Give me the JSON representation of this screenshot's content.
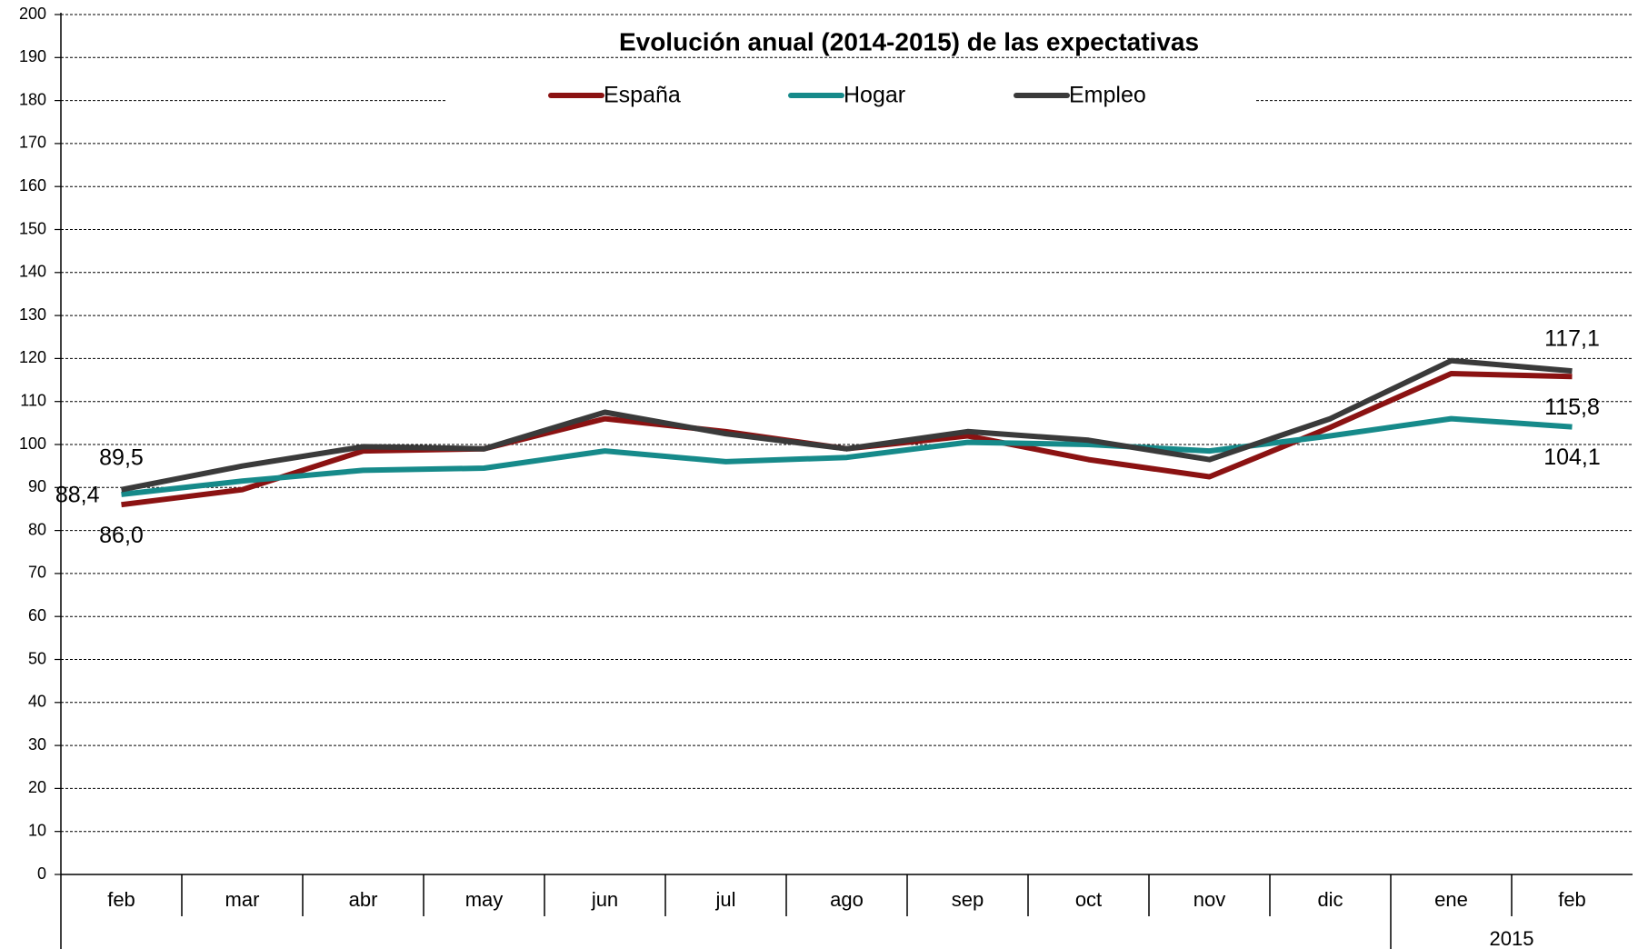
{
  "chart_data": {
    "type": "line",
    "title": "Evolución anual (2014-2015) de las expectativas",
    "categories": [
      "feb",
      "mar",
      "abr",
      "may",
      "jun",
      "jul",
      "ago",
      "sep",
      "oct",
      "nov",
      "dic",
      "ene",
      "feb"
    ],
    "year_label": "2015",
    "series": [
      {
        "name": "España",
        "color": "#8b1212",
        "values": [
          86.0,
          89.5,
          98.5,
          99,
          106,
          103,
          99,
          102,
          96.5,
          92.5,
          104,
          116.5,
          115.8
        ],
        "value_labels": [
          "86,0",
          null,
          null,
          null,
          null,
          null,
          null,
          null,
          null,
          null,
          null,
          null,
          "115,8"
        ]
      },
      {
        "name": "Hogar",
        "color": "#168a8a",
        "values": [
          88.4,
          91.5,
          94,
          94.5,
          98.5,
          96,
          97,
          100.5,
          100,
          98.5,
          102,
          106,
          104.1
        ],
        "value_labels": [
          "88,4",
          null,
          null,
          null,
          null,
          null,
          null,
          null,
          null,
          null,
          null,
          null,
          "104,1"
        ]
      },
      {
        "name": "Empleo",
        "color": "#3a3a3a",
        "values": [
          89.5,
          95,
          99.5,
          99,
          107.5,
          102.5,
          99,
          103,
          101,
          96.5,
          106,
          119.5,
          117.1
        ],
        "value_labels": [
          "89,5",
          null,
          null,
          null,
          null,
          null,
          null,
          null,
          null,
          null,
          null,
          null,
          "117,1"
        ]
      }
    ],
    "ylim": [
      0,
      200
    ],
    "yticks": [
      0,
      10,
      20,
      30,
      40,
      50,
      60,
      70,
      80,
      90,
      100,
      110,
      120,
      130,
      140,
      150,
      160,
      170,
      180,
      190,
      200
    ],
    "grid": true
  }
}
